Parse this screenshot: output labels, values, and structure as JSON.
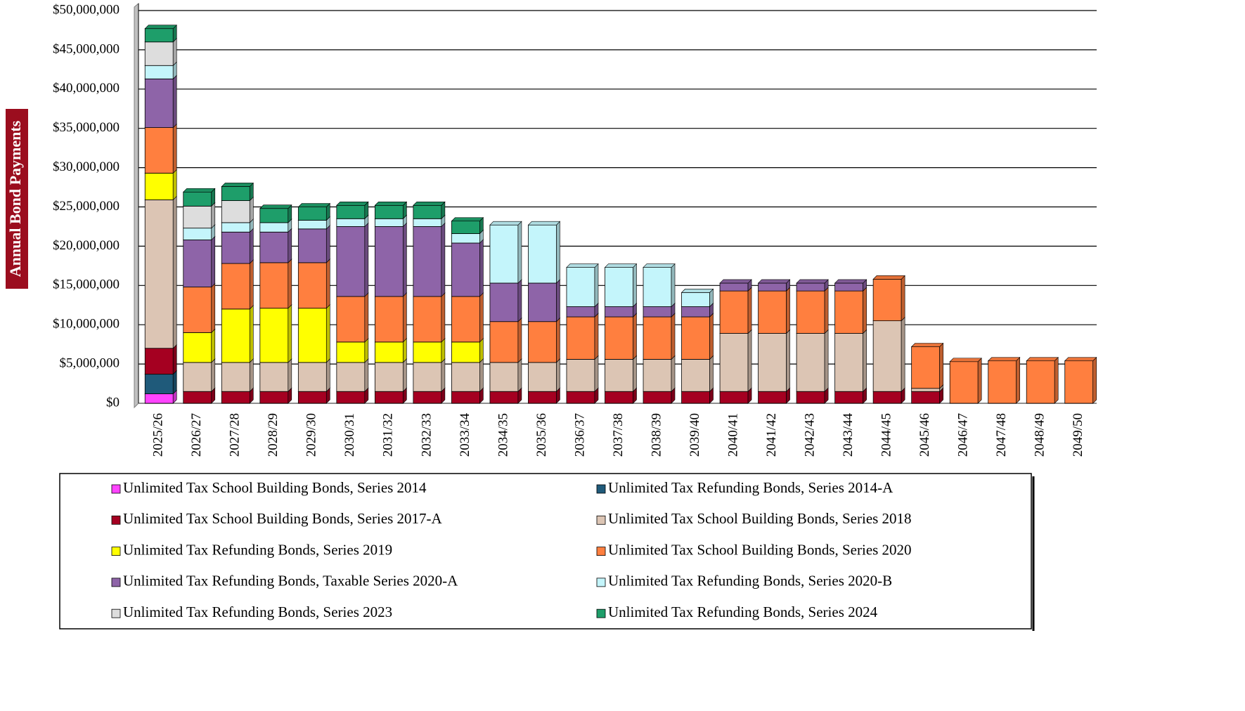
{
  "chart_data": {
    "type": "stacked-bar",
    "y_label": "Annual Bond Payments",
    "categories": [
      "2025/26",
      "2026/27",
      "2027/28",
      "2028/29",
      "2029/30",
      "2030/31",
      "2031/32",
      "2032/33",
      "2033/34",
      "2034/35",
      "2035/36",
      "2036/37",
      "2037/38",
      "2038/39",
      "2039/40",
      "2040/41",
      "2041/42",
      "2042/43",
      "2043/44",
      "2044/45",
      "2045/46",
      "2046/47",
      "2047/48",
      "2048/49",
      "2049/50"
    ],
    "ylim": [
      0,
      50000000
    ],
    "yticks": [
      {
        "value": 0,
        "label": "$0"
      },
      {
        "value": 5000000,
        "label": "$5,000,000"
      },
      {
        "value": 10000000,
        "label": "$10,000,000"
      },
      {
        "value": 15000000,
        "label": "$15,000,000"
      },
      {
        "value": 20000000,
        "label": "$20,000,000"
      },
      {
        "value": 25000000,
        "label": "$25,000,000"
      },
      {
        "value": 30000000,
        "label": "$30,000,000"
      },
      {
        "value": 35000000,
        "label": "$35,000,000"
      },
      {
        "value": 40000000,
        "label": "$40,000,000"
      },
      {
        "value": 45000000,
        "label": "$45,000,000"
      },
      {
        "value": 50000000,
        "label": "$50,000,000"
      }
    ],
    "grid": true,
    "series": [
      {
        "name": "Unlimited Tax School Building Bonds, Series 2014",
        "color": "#ff44ff",
        "values": [
          1200000,
          0,
          0,
          0,
          0,
          0,
          0,
          0,
          0,
          0,
          0,
          0,
          0,
          0,
          0,
          0,
          0,
          0,
          0,
          0,
          0,
          0,
          0,
          0,
          0
        ]
      },
      {
        "name": "Unlimited Tax Refunding Bonds, Series 2014-A",
        "color": "#1f5a7a",
        "values": [
          2500000,
          0,
          0,
          0,
          0,
          0,
          0,
          0,
          0,
          0,
          0,
          0,
          0,
          0,
          0,
          0,
          0,
          0,
          0,
          0,
          0,
          0,
          0,
          0,
          0
        ]
      },
      {
        "name": "Unlimited Tax School Building Bonds, Series 2017-A",
        "color": "#a50021",
        "values": [
          3300000,
          1500000,
          1500000,
          1500000,
          1500000,
          1500000,
          1500000,
          1500000,
          1500000,
          1500000,
          1500000,
          1500000,
          1500000,
          1500000,
          1500000,
          1500000,
          1500000,
          1500000,
          1500000,
          1500000,
          1500000,
          0,
          0,
          0,
          0
        ]
      },
      {
        "name": "Unlimited Tax School Building Bonds, Series 2018",
        "color": "#dcc5b4",
        "values": [
          18900000,
          3700000,
          3700000,
          3700000,
          3700000,
          3700000,
          3700000,
          3700000,
          3700000,
          3700000,
          3700000,
          4100000,
          4100000,
          4100000,
          4100000,
          7400000,
          7400000,
          7400000,
          7400000,
          9000000,
          400000,
          0,
          0,
          0,
          0
        ]
      },
      {
        "name": "Unlimited Tax Refunding Bonds, Series 2019",
        "color": "#ffff00",
        "values": [
          3400000,
          3800000,
          6800000,
          6900000,
          6900000,
          2600000,
          2600000,
          2600000,
          2600000,
          0,
          0,
          0,
          0,
          0,
          0,
          0,
          0,
          0,
          0,
          0,
          0,
          0,
          0,
          0,
          0
        ]
      },
      {
        "name": "Unlimited Tax School Building Bonds, Series 2020",
        "color": "#ff7f3f",
        "values": [
          5800000,
          5800000,
          5800000,
          5800000,
          5800000,
          5800000,
          5800000,
          5800000,
          5800000,
          5200000,
          5200000,
          5400000,
          5400000,
          5400000,
          5400000,
          5400000,
          5400000,
          5400000,
          5400000,
          5300000,
          5300000,
          5300000,
          5400000,
          5400000,
          5400000
        ]
      },
      {
        "name": "Unlimited Tax Refunding Bonds, Taxable Series 2020-A",
        "color": "#8e64a8",
        "values": [
          6200000,
          6000000,
          4000000,
          3900000,
          4300000,
          8900000,
          8900000,
          8900000,
          6800000,
          4900000,
          4900000,
          1300000,
          1300000,
          1300000,
          1300000,
          1000000,
          1000000,
          1000000,
          1000000,
          0,
          0,
          0,
          0,
          0,
          0
        ]
      },
      {
        "name": "Unlimited Tax Refunding Bonds, Series 2020-B",
        "color": "#c4f5fb",
        "values": [
          1700000,
          1500000,
          1200000,
          1200000,
          1100000,
          1000000,
          1000000,
          1000000,
          1200000,
          7400000,
          7400000,
          5000000,
          5000000,
          5000000,
          1800000,
          0,
          0,
          0,
          0,
          0,
          0,
          0,
          0,
          0,
          0
        ]
      },
      {
        "name": "Unlimited Tax Refunding Bonds, Series 2023",
        "color": "#dddddd",
        "values": [
          3000000,
          2800000,
          2800000,
          0,
          0,
          0,
          0,
          0,
          0,
          0,
          0,
          0,
          0,
          0,
          0,
          0,
          0,
          0,
          0,
          0,
          0,
          0,
          0,
          0,
          0
        ]
      },
      {
        "name": "Unlimited Tax Refunding Bonds, Series 2024",
        "color": "#1e9e6a",
        "values": [
          1700000,
          1800000,
          1800000,
          1800000,
          1700000,
          1700000,
          1700000,
          1700000,
          1600000,
          0,
          0,
          0,
          0,
          0,
          0,
          0,
          0,
          0,
          0,
          0,
          0,
          0,
          0,
          0,
          0
        ]
      }
    ]
  }
}
